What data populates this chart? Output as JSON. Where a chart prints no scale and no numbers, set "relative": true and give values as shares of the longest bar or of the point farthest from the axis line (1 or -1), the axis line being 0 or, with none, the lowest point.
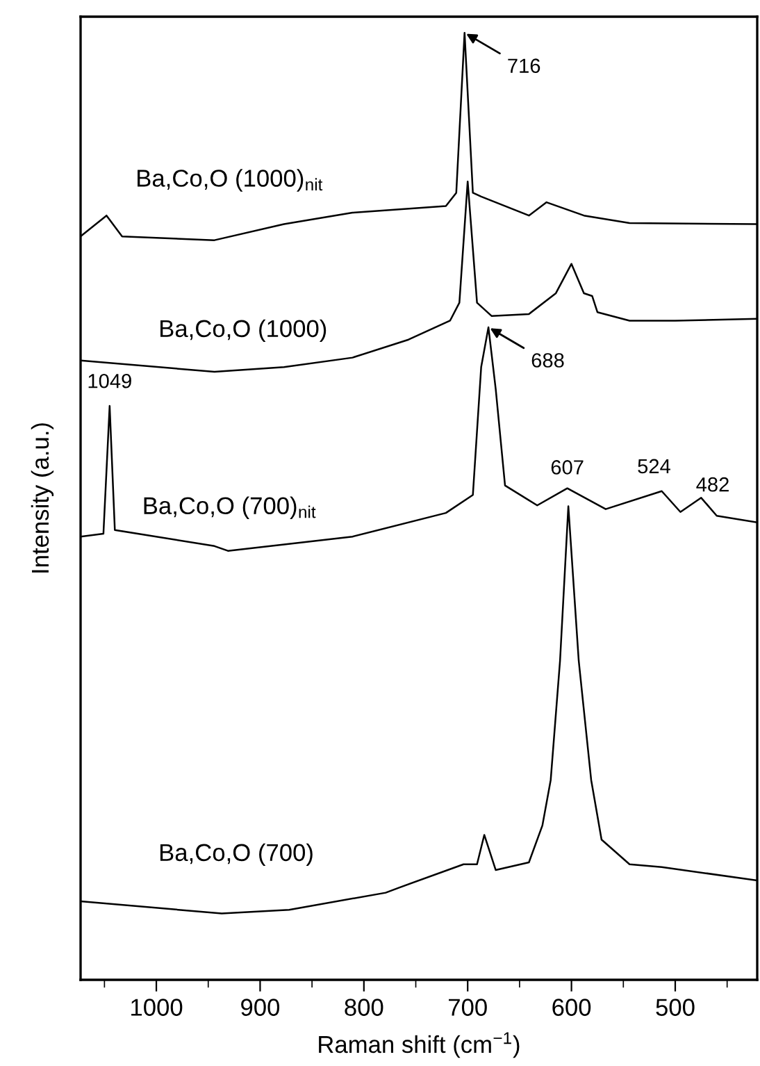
{
  "chart_data": {
    "type": "line",
    "relative": true,
    "xlabel": "Raman shift (cm$^{−1}$)",
    "ylabel": "Intensity (a.u.)",
    "xlim": [
      1073,
      421
    ],
    "xticks": [
      {
        "value": 1050,
        "label": null
      },
      1000,
      {
        "value": 950,
        "label": null
      },
      900,
      {
        "value": 850,
        "label": null
      },
      800,
      {
        "value": 750,
        "label": null
      },
      700,
      {
        "value": 650,
        "label": null
      },
      600,
      {
        "value": 550,
        "label": null
      },
      500,
      {
        "value": 450,
        "label": null
      }
    ],
    "tick_labels": "x",
    "grid": false,
    "legend": false,
    "marker": "none",
    "line_style": "solid",
    "series": [
      {
        "name": "Ba,Co,O (1000)$_{nit}$",
        "color": "#000000",
        "x": [
          1073,
          1048,
          1033,
          944,
          877,
          811,
          721,
          711,
          703,
          695,
          687,
          641,
          624,
          588,
          544,
          421
        ],
        "values": [
          0.785,
          0.807,
          0.785,
          0.781,
          0.798,
          0.81,
          0.817,
          0.831,
          1.0,
          0.831,
          0.827,
          0.807,
          0.821,
          0.807,
          0.799,
          0.798
        ]
      },
      {
        "name": "Ba,Co,O (1000)",
        "color": "#000000",
        "x": [
          1073,
          944,
          877,
          811,
          757,
          717,
          708,
          700,
          691,
          677,
          641,
          615,
          600,
          588,
          580,
          575,
          544,
          500,
          421
        ],
        "values": [
          0.654,
          0.642,
          0.647,
          0.657,
          0.676,
          0.696,
          0.715,
          0.843,
          0.715,
          0.701,
          0.703,
          0.725,
          0.756,
          0.725,
          0.722,
          0.705,
          0.696,
          0.696,
          0.698
        ]
      },
      {
        "name": "Ba,Co,O (700)$_{nit}$",
        "color": "#000000",
        "x": [
          1073,
          1051,
          1045,
          1040,
          944,
          931,
          811,
          721,
          695,
          687,
          680,
          673,
          664,
          633,
          604,
          567,
          513,
          495,
          475,
          460,
          421
        ],
        "values": [
          0.468,
          0.471,
          0.606,
          0.475,
          0.458,
          0.453,
          0.468,
          0.493,
          0.512,
          0.647,
          0.689,
          0.624,
          0.522,
          0.501,
          0.519,
          0.497,
          0.516,
          0.494,
          0.509,
          0.49,
          0.483
        ]
      },
      {
        "name": "Ba,Co,O (700)",
        "color": "#000000",
        "x": [
          1073,
          937,
          872,
          779,
          767,
          704,
          691,
          684,
          673,
          641,
          628,
          620,
          611,
          603,
          593,
          581,
          571,
          544,
          513,
          421
        ],
        "values": [
          0.083,
          0.07,
          0.074,
          0.092,
          0.097,
          0.122,
          0.122,
          0.153,
          0.116,
          0.124,
          0.163,
          0.211,
          0.337,
          0.5,
          0.337,
          0.211,
          0.148,
          0.122,
          0.119,
          0.105
        ]
      }
    ],
    "annotations": [
      {
        "text": "716",
        "x": 703,
        "y": 1.0
      },
      {
        "text": "688",
        "x": 680,
        "y": 0.689
      },
      {
        "text": "1049",
        "x": 1045,
        "y": 0.606
      },
      {
        "text": "607",
        "x": 604,
        "y": 0.519
      },
      {
        "text": "524",
        "x": 513,
        "y": 0.516
      },
      {
        "text": "482",
        "x": 475,
        "y": 0.509
      }
    ]
  }
}
